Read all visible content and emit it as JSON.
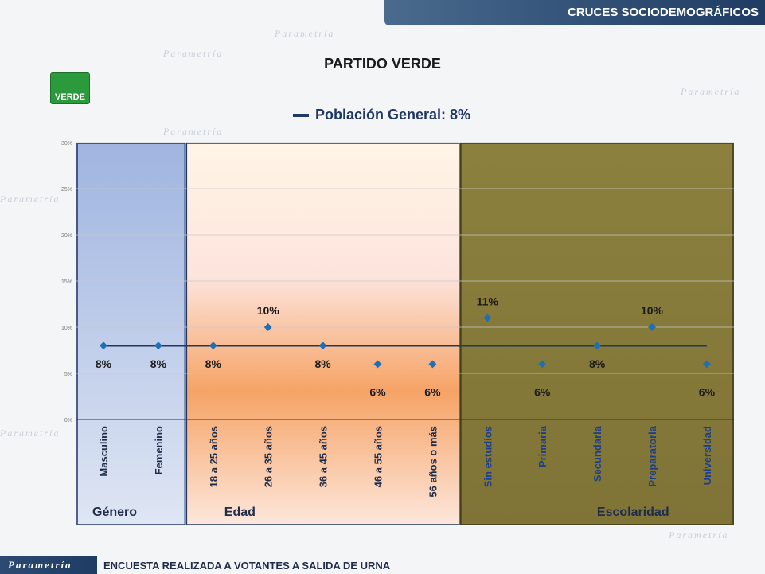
{
  "header": {
    "section_title": "CRUCES SOCIODEMOGRÁFICOS"
  },
  "title": "PARTIDO VERDE",
  "logo": {
    "text": "VERDE",
    "color": "#2a9a3c"
  },
  "legend": {
    "label": "Población General: 8%"
  },
  "footer": {
    "brand": "Parametría",
    "text": "ENCUESTA  REALIZADA A VOTANTES A SALIDA DE URNA"
  },
  "watermark": "Parametría",
  "chart_data": {
    "type": "scatter",
    "ylim": [
      0,
      30
    ],
    "yticks": [
      "0%",
      "5%",
      "10%",
      "15%",
      "20%",
      "25%",
      "30%"
    ],
    "ytick_values": [
      0,
      5,
      10,
      15,
      20,
      25,
      30
    ],
    "categories": [
      "Masculino",
      "Femenino",
      "18 a 25 años",
      "26 a 35 años",
      "36 a 45 años",
      "46 a 55 años",
      "56 años o más",
      "Sin estudios",
      "Primaria",
      "Secundaria",
      "Preparatoria",
      "Universidad"
    ],
    "series": [
      {
        "values": [
          8,
          8,
          8,
          10,
          8,
          6,
          6,
          11,
          6,
          8,
          10,
          6
        ],
        "labels": [
          "8%",
          "8%",
          "8%",
          "10%",
          "8%",
          "6%",
          "6%",
          "11%",
          "6%",
          "8%",
          "10%",
          "6%"
        ],
        "color": "#1f6fb5"
      }
    ],
    "reference_line": {
      "value": 8,
      "color": "#1f3864"
    },
    "groups": [
      {
        "name": "Género",
        "start": 0,
        "end": 1,
        "color": "#aebfe3"
      },
      {
        "name": "Edad",
        "start": 2,
        "end": 6,
        "color": "#f6b27a"
      },
      {
        "name": "Escolaridad",
        "start": 7,
        "end": 11,
        "color": "#8a7f3c"
      }
    ],
    "grid": true
  }
}
